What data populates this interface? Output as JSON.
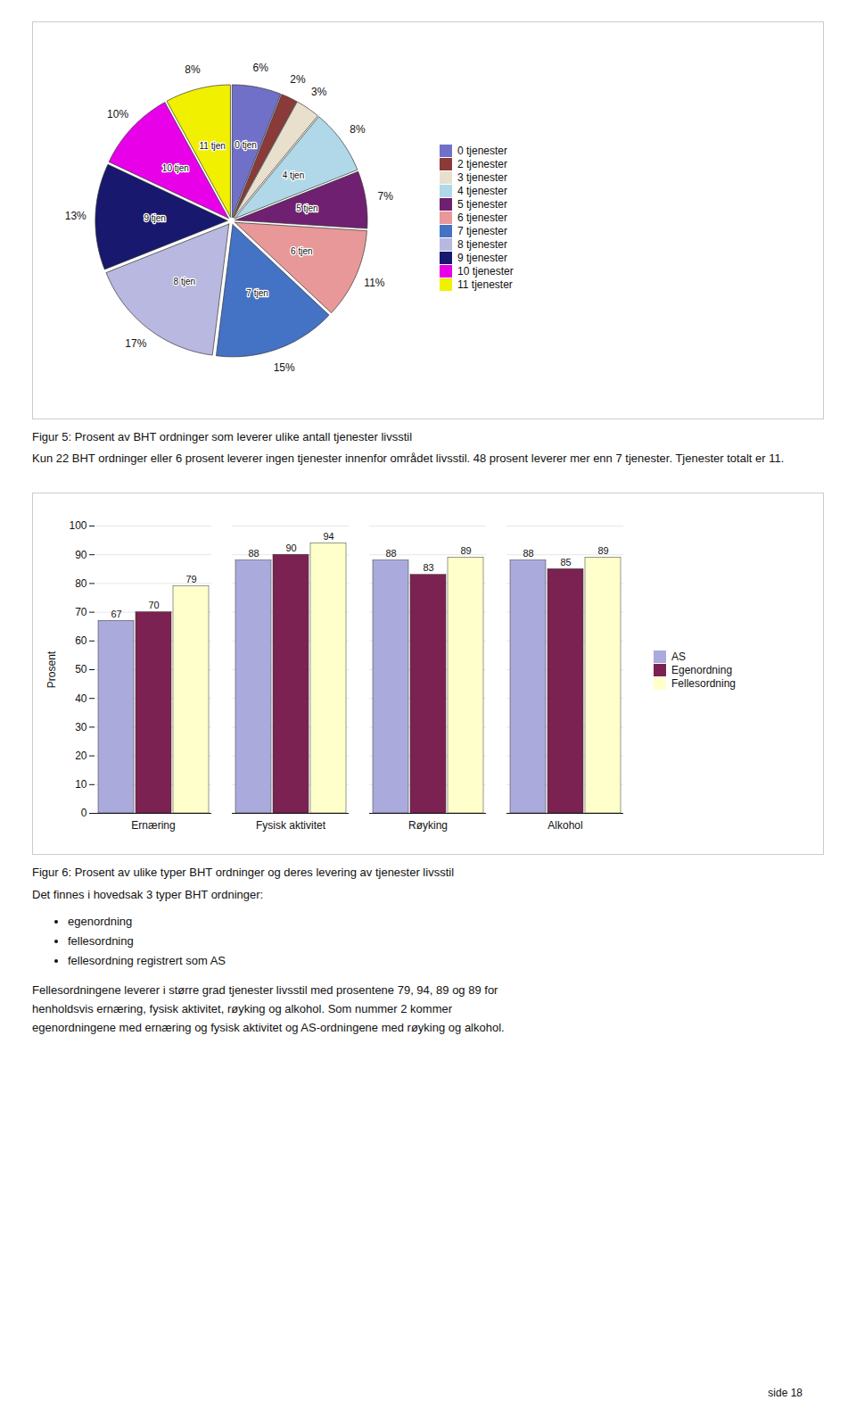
{
  "chart_data": [
    {
      "type": "pie",
      "title": "Figur 5: Prosent av BHT ordninger som leverer ulike antall tjenester livsstil",
      "categories": [
        "0 tjenester",
        "2 tjenester",
        "3 tjenester",
        "4 tjenester",
        "5 tjenester",
        "6 tjenester",
        "7 tjenester",
        "8 tjenester",
        "9 tjenester",
        "10 tjenester",
        "11 tjenester"
      ],
      "values": [
        6,
        2,
        3,
        8,
        7,
        11,
        15,
        17,
        13,
        10,
        8
      ],
      "value_labels": [
        "6%",
        "2%",
        "3%",
        "8%",
        "7%",
        "11%",
        "15%",
        "17%",
        "13%",
        "10%",
        "8%"
      ],
      "inner_labels": [
        "0 tjen",
        null,
        null,
        "4 tjen",
        "5 tjen",
        "6 tjen",
        "7 tjen",
        "8 tjen",
        "9 tjen",
        "10 tjen",
        "11 tjen"
      ],
      "colors": [
        "#7070c8",
        "#8b3a3a",
        "#e8e0cc",
        "#b0d8e8",
        "#702070",
        "#e89898",
        "#4472c4",
        "#b8b8e0",
        "#18186e",
        "#e800e8",
        "#f0f000"
      ],
      "data_labels": true,
      "legend": "right",
      "annotations": [
        "Kun 22 BHT ordninger eller 6 prosent leverer ingen tjenester innenfor området livsstil. 48 prosent leverer mer enn 7 tjenester. Tjenester totalt er 11."
      ]
    },
    {
      "type": "bar",
      "title": "Figur 6: Prosent av ulike typer BHT ordninger og deres levering av tjenester livsstil",
      "categories": [
        "Ernæring",
        "Fysisk aktivitet",
        "Røyking",
        "Alkohol"
      ],
      "series": [
        {
          "name": "AS",
          "color": "#aaaadd",
          "values": [
            67,
            88,
            88,
            88
          ]
        },
        {
          "name": "Egenordning",
          "color": "#7b2252",
          "values": [
            70,
            90,
            83,
            85
          ]
        },
        {
          "name": "Fellesordning",
          "color": "#ffffcc",
          "values": [
            79,
            94,
            89,
            89
          ]
        }
      ],
      "ylabel": "Prosent",
      "ylim": [
        0,
        100
      ],
      "yticks": [
        0,
        10,
        20,
        30,
        40,
        50,
        60,
        70,
        80,
        90,
        100
      ],
      "grid": true,
      "data_labels": true,
      "legend": "right",
      "annotations": [
        "Det finnes i hovedsak 3 typer BHT ordninger:",
        [
          "egenordning",
          "fellesordning",
          "fellesordning registrert som AS"
        ],
        "Fellesordningene leverer i større grad tjenester livsstil med prosentene 79, 94, 89 og 89 for",
        "henholdsvis ernæring, fysisk aktivitet, røyking og alkohol. Som nummer 2 kommer",
        "egenordningene med ernæring og fysisk aktivitet og AS-ordningene med røyking og alkohol.",
        "side 18"
      ]
    }
  ]
}
